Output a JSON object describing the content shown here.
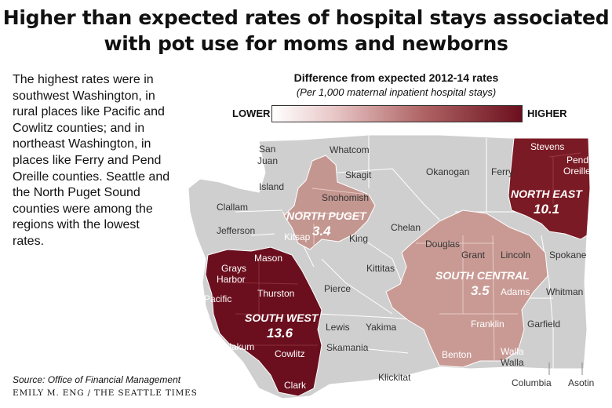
{
  "title_line1": "Higher than expected rates of hospital stays associated",
  "title_line2": "with pot use for moms and newborns",
  "body_text": "The highest rates were in southwest Washington, in rural places like Pacific and Cowlitz counties; and in northeast Washington, in places like Ferry and Pend Oreille counties. Seattle and the North Puget Sound counties were among the regions with the lowest rates.",
  "legend": {
    "title": "Difference from expected 2012-14 rates",
    "subtitle": "(Per 1,000 maternal inpatient hospital stays)",
    "low_label": "LOWER",
    "high_label": "HIGHER",
    "colors": [
      "#ffffff",
      "#e8c6c6",
      "#b06565",
      "#6b0f1e"
    ]
  },
  "regions": {
    "south_west": {
      "name": "SOUTH WEST",
      "value": "13.6",
      "color": "#6b0f1e"
    },
    "north_east": {
      "name": "NORTH EAST",
      "value": "10.1",
      "color": "#7a1a24"
    },
    "south_central": {
      "name": "SOUTH CENTRAL",
      "value": "3.5",
      "color": "#c99a94"
    },
    "north_puget": {
      "name": "NORTH PUGET",
      "value": "3.4",
      "color": "#c49690"
    }
  },
  "counties": {
    "san_juan_1": "San",
    "san_juan_2": "Juan",
    "whatcom": "Whatcom",
    "okanogan": "Okanogan",
    "ferry": "Ferry",
    "stevens": "Stevens",
    "pend_oreille_1": "Pend",
    "pend_oreille_2": "Oreille",
    "island": "Island",
    "skagit": "Skagit",
    "snohomish": "Snohomish",
    "clallam": "Clallam",
    "jefferson": "Jefferson",
    "chelan": "Chelan",
    "king": "King",
    "kitsap": "Kitsap",
    "douglas": "Douglas",
    "grant": "Grant",
    "lincoln": "Lincoln",
    "spokane": "Spokane",
    "mason": "Mason",
    "grays_harbor_1": "Grays",
    "grays_harbor_2": "Harbor",
    "kittitas": "Kittitas",
    "pacific": "Pacific",
    "thurston": "Thurston",
    "pierce": "Pierce",
    "adams": "Adams",
    "whitman": "Whitman",
    "lewis": "Lewis",
    "yakima": "Yakima",
    "franklin": "Franklin",
    "garfield": "Garfield",
    "wahkiakum": "Wahkiakum",
    "cowlitz": "Cowlitz",
    "skamania": "Skamania",
    "benton": "Benton",
    "walla_walla_1": "Walla",
    "walla_walla_2": "Walla",
    "klickitat": "Klickitat",
    "clark": "Clark",
    "columbia": "Columbia",
    "asotin": "Asotin"
  },
  "source": "Source: Office of Financial Management",
  "credit": "EMILY M. ENG / THE SEATTLE TIMES"
}
